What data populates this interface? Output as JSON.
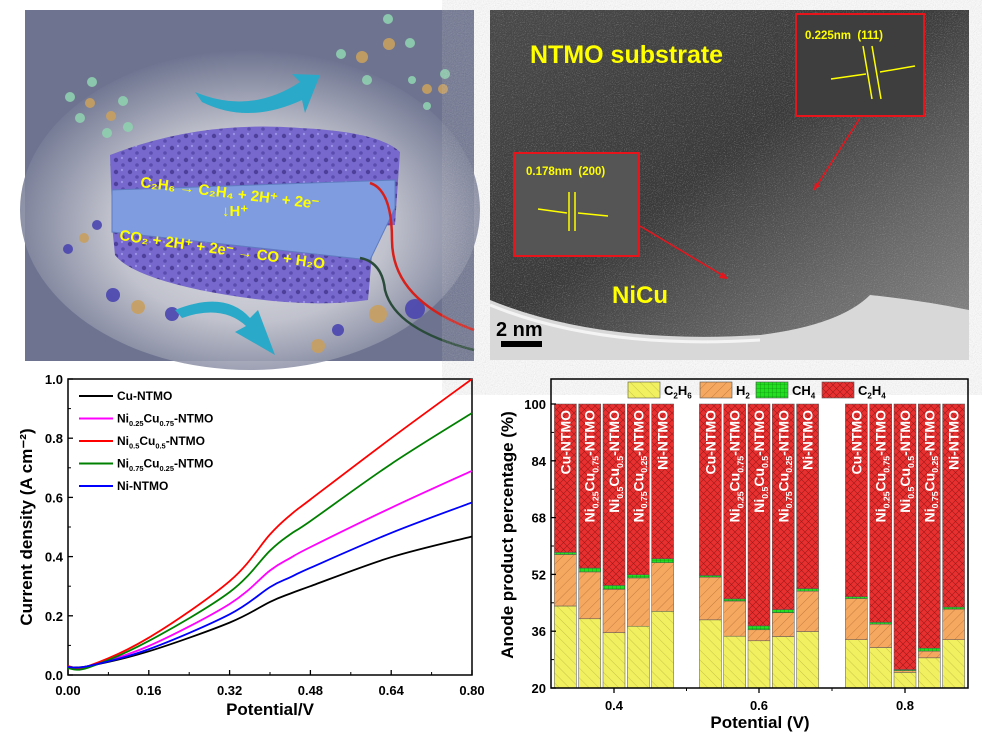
{
  "schematic": {
    "anode_reaction": "C₂H₆ → C₂H₄ + 2H⁺ + 2e⁻",
    "proton_label": "H⁺",
    "cathode_reaction": "CO₂ + 2H⁺ + 2e⁻ → CO + H₂O",
    "colors": {
      "background": "#6e7490",
      "electrode": "#7465c8",
      "membrane": "#7f9ce0",
      "text": "#ffff00",
      "arrow": "#2aa9c8"
    }
  },
  "tem": {
    "substrate_label": "NTMO substrate",
    "particle_label": "NiCu",
    "inset_top_label": "0.225nm  (111)",
    "inset_bottom_label": "0.178nm  (200)",
    "scale_bar_label": "2 nm",
    "colors": {
      "label": "#ffff00",
      "inset_border": "#e8141c"
    }
  },
  "chart_data": [
    {
      "type": "line",
      "xlabel": "Potential/V",
      "ylabel": "Current density (A cm⁻²)",
      "xlim": [
        0,
        0.8
      ],
      "ylim": [
        0,
        1.0
      ],
      "xticks": [
        "0.00",
        "0.16",
        "0.32",
        "0.48",
        "0.64",
        "0.80"
      ],
      "yticks": [
        "0.0",
        "0.2",
        "0.4",
        "0.6",
        "0.8",
        "1.0"
      ],
      "legend_position": "top-left",
      "grid": false,
      "x": [
        0,
        0.04,
        0.16,
        0.32,
        0.4,
        0.44,
        0.48,
        0.64,
        0.8
      ],
      "series": [
        {
          "name": "Cu-NTMO",
          "color": "#000000",
          "values": [
            0.027,
            0.03,
            0.08,
            0.177,
            0.247,
            0.275,
            0.3,
            0.398,
            0.468
          ]
        },
        {
          "name": "Ni0.25Cu0.75-NTMO",
          "color": "#ff00ff",
          "values": [
            0.027,
            0.03,
            0.098,
            0.24,
            0.353,
            0.395,
            0.432,
            0.565,
            0.69
          ]
        },
        {
          "name": "Ni0.5Cu0.5-NTMO",
          "color": "#ff0000",
          "values": [
            0.03,
            0.03,
            0.126,
            0.317,
            0.475,
            0.54,
            0.593,
            0.8,
            1.0
          ]
        },
        {
          "name": "Ni0.75Cu0.25-NTMO",
          "color": "#008000",
          "values": [
            0.023,
            0.025,
            0.115,
            0.28,
            0.42,
            0.475,
            0.52,
            0.713,
            0.885
          ]
        },
        {
          "name": "Ni-NTMO",
          "color": "#0000ff",
          "values": [
            0.027,
            0.03,
            0.087,
            0.205,
            0.297,
            0.33,
            0.362,
            0.48,
            0.583
          ]
        }
      ]
    },
    {
      "type": "bar",
      "stacked": true,
      "xlabel": "Potential (V)",
      "ylabel": "Anode product percentage (%)",
      "categories": [
        "0.4",
        "0.6",
        "0.8"
      ],
      "samples": [
        "Cu-NTMO",
        "Ni0.25Cu0.75-NTMO",
        "Ni0.5Cu0.5-NTMO",
        "Ni0.75Cu0.25-NTMO",
        "Ni-NTMO"
      ],
      "ylim": [
        20,
        100
      ],
      "yticks": [
        "20",
        "36",
        "52",
        "68",
        "84",
        "100"
      ],
      "legend_position": "top",
      "grid": false,
      "series": [
        {
          "name": "C2H6",
          "color": "#f0f060",
          "values": [
            [
              43.1,
              39.5,
              35.6,
              37.4,
              41.6
            ],
            [
              39.2,
              34.6,
              33.3,
              34.5,
              35.9
            ],
            [
              33.6,
              31.4,
              24.4,
              28.5,
              33.6
            ]
          ]
        },
        {
          "name": "H2",
          "color": "#f5a860",
          "values": [
            [
              14.5,
              13.2,
              12.2,
              13.6,
              13.7
            ],
            [
              12.0,
              9.9,
              3.1,
              6.7,
              11.4
            ],
            [
              11.6,
              6.6,
              0.5,
              1.9,
              8.6
            ]
          ]
        },
        {
          "name": "CH4",
          "color": "#20e020",
          "values": [
            [
              0.6,
              1.1,
              1.1,
              0.9,
              1.1
            ],
            [
              0.5,
              0.6,
              1.1,
              0.9,
              0.7
            ],
            [
              0.5,
              0.5,
              0.3,
              0.8,
              0.6
            ]
          ]
        },
        {
          "name": "C2H4",
          "color": "#e83030",
          "values": [
            [
              41.8,
              46.2,
              51.1,
              48.1,
              43.6
            ],
            [
              48.3,
              54.9,
              62.5,
              57.9,
              52.0
            ],
            [
              54.3,
              61.5,
              74.8,
              68.8,
              57.2
            ]
          ]
        }
      ]
    }
  ]
}
